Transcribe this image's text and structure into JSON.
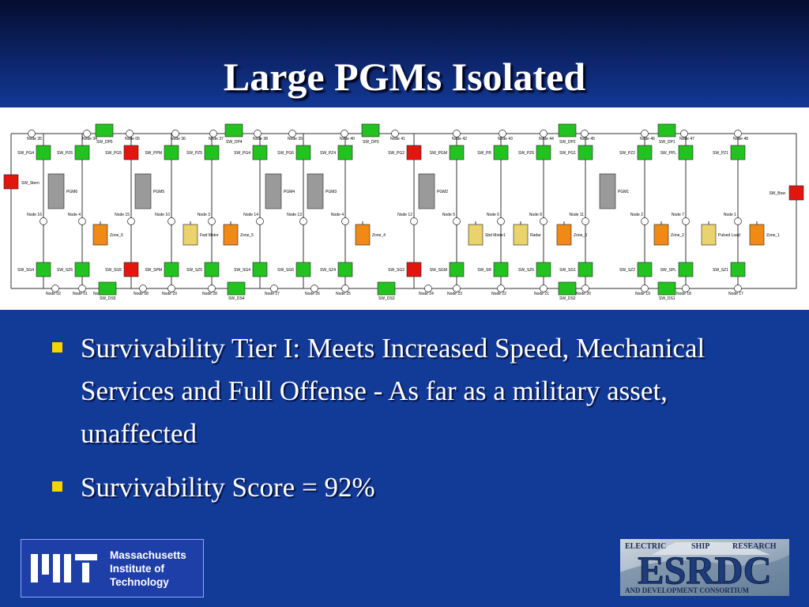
{
  "title": "Large PGMs Isolated",
  "diagram": {
    "colors": {
      "green": "#22c21f",
      "red": "#e2160f",
      "orange": "#f08a14",
      "yellow": "#ead36a",
      "gray": "#9a9a9a"
    },
    "top_nodes": [
      "Node 35",
      "Node 34",
      "Node 05",
      "Node 36",
      "Node 37",
      "Node 38",
      "Node 39",
      "Node 40",
      "Node 41",
      "Node 42",
      "Node 43",
      "Node 44",
      "Node 45",
      "Node 46",
      "Node 47",
      "Node 48"
    ],
    "bottom_nodes": [
      "Node 02",
      "Node 01",
      "Node 30",
      "Node 08",
      "Node 29",
      "Node 28",
      "Node 27",
      "Node 26",
      "Node 25",
      "Node 24",
      "Node 23",
      "Node 22",
      "Node 21",
      "Node 20",
      "Node 19",
      "Node 18",
      "Node 17"
    ],
    "mid_nodes": [
      "Node 16",
      "Node 4",
      "Node 15",
      "Node 10",
      "Node 3",
      "Node 14",
      "Node 13",
      "Node 4",
      "Node 12",
      "Node 5",
      "Node 6",
      "Node 8",
      "Node 11",
      "Node 2",
      "Node 7",
      "Node 1"
    ],
    "top_row_switches": [
      "SW_PG4",
      "SW_PZ6",
      "SW_PG5",
      "SW_PPM",
      "SW_PZ5",
      "SW_PG4",
      "SW_PG6",
      "SW_PZ4",
      "SW_PG2",
      "SW_PGM",
      "SW_PR",
      "SW_PZ6",
      "SW_PG1",
      "SW_PZ2",
      "SW_PPL",
      "SW_PZ1"
    ],
    "bottom_row_switches": [
      "SW_SG4",
      "SW_SZ6",
      "SW_SG5",
      "SW_SPM",
      "SW_SZ5",
      "SW_SG4",
      "SW_SG6",
      "SW_SZ4",
      "SW_SG2",
      "SW_SGM",
      "SW_SR",
      "SW_SZ6",
      "SW_SG1",
      "SW_SZ2",
      "SW_SPL",
      "SW_SZ1"
    ],
    "top_bus_switches": [
      "SW_DP5",
      "SW_DP4",
      "SW_DP3",
      "SW_DP2",
      "SW_DP1"
    ],
    "bottom_bus_switches": [
      "SW_DS5",
      "SW_DS4",
      "SW_DS3",
      "SW_DS2",
      "SW_DS1"
    ],
    "pgms": [
      "PGM6",
      "PGM5",
      "PGM4",
      "PGM3",
      "PGM2",
      "PGM1"
    ],
    "loads": [
      "Zone_6",
      "Fwd Motor",
      "Zone_5",
      "Zone_4",
      "Sbd Motor1",
      "Radar",
      "Zone_3",
      "Zone_2",
      "Pulsed Load",
      "Zone_1"
    ],
    "end_switches": [
      "SW_Stern",
      "SW_Bow"
    ]
  },
  "bullets": [
    "Survivability Tier I:  Meets Increased Speed, Mechanical Services and Full Offense - As far as a military asset, unaffected",
    "Survivability Score = 92%"
  ],
  "mit_logo": {
    "lines": [
      "Massachusetts",
      "Institute of",
      "Technology"
    ]
  },
  "esrdc_logo": {
    "acronym": "ESRDC",
    "top_words": [
      "ELECTRIC",
      "SHIP",
      "RESEARCH"
    ],
    "bottom_line": "AND DEVELOPMENT CONSORTIUM"
  }
}
